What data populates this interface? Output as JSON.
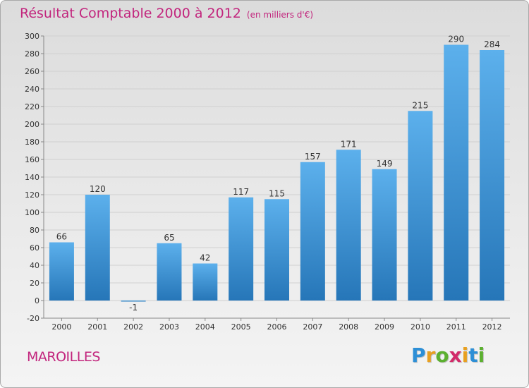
{
  "header": {
    "title": "Résultat Comptable 2000 à 2012",
    "unit": "(en milliers d'€)"
  },
  "footer": {
    "location": "MAROILLES",
    "logo_letters": [
      "P",
      "r",
      "o",
      "x",
      "i",
      "t",
      "i"
    ],
    "logo_colors": [
      "#2d8fd6",
      "#e8a020",
      "#5cb030",
      "#d22b6a",
      "#e8a020",
      "#2d8fd6",
      "#5cb030"
    ]
  },
  "colors": {
    "title": "#c2257d",
    "bar_top": "#5cb0ec",
    "bar_bottom": "#2676b8",
    "grid": "#d0d0d0"
  },
  "chart_data": {
    "type": "bar",
    "categories": [
      "2000",
      "2001",
      "2002",
      "2003",
      "2004",
      "2005",
      "2006",
      "2007",
      "2008",
      "2009",
      "2010",
      "2011",
      "2012"
    ],
    "values": [
      66,
      120,
      -1,
      65,
      42,
      117,
      115,
      157,
      171,
      149,
      215,
      290,
      284
    ],
    "data_labels": [
      "66",
      "120",
      "-1",
      "65",
      "42",
      "117",
      "115",
      "157",
      "171",
      "149",
      "215",
      "290",
      "284"
    ],
    "yticks": [
      -20,
      0,
      20,
      40,
      60,
      80,
      100,
      120,
      140,
      160,
      180,
      200,
      220,
      240,
      260,
      280,
      300
    ],
    "ylim": [
      -20,
      300
    ],
    "grid": true,
    "legend": "none"
  }
}
